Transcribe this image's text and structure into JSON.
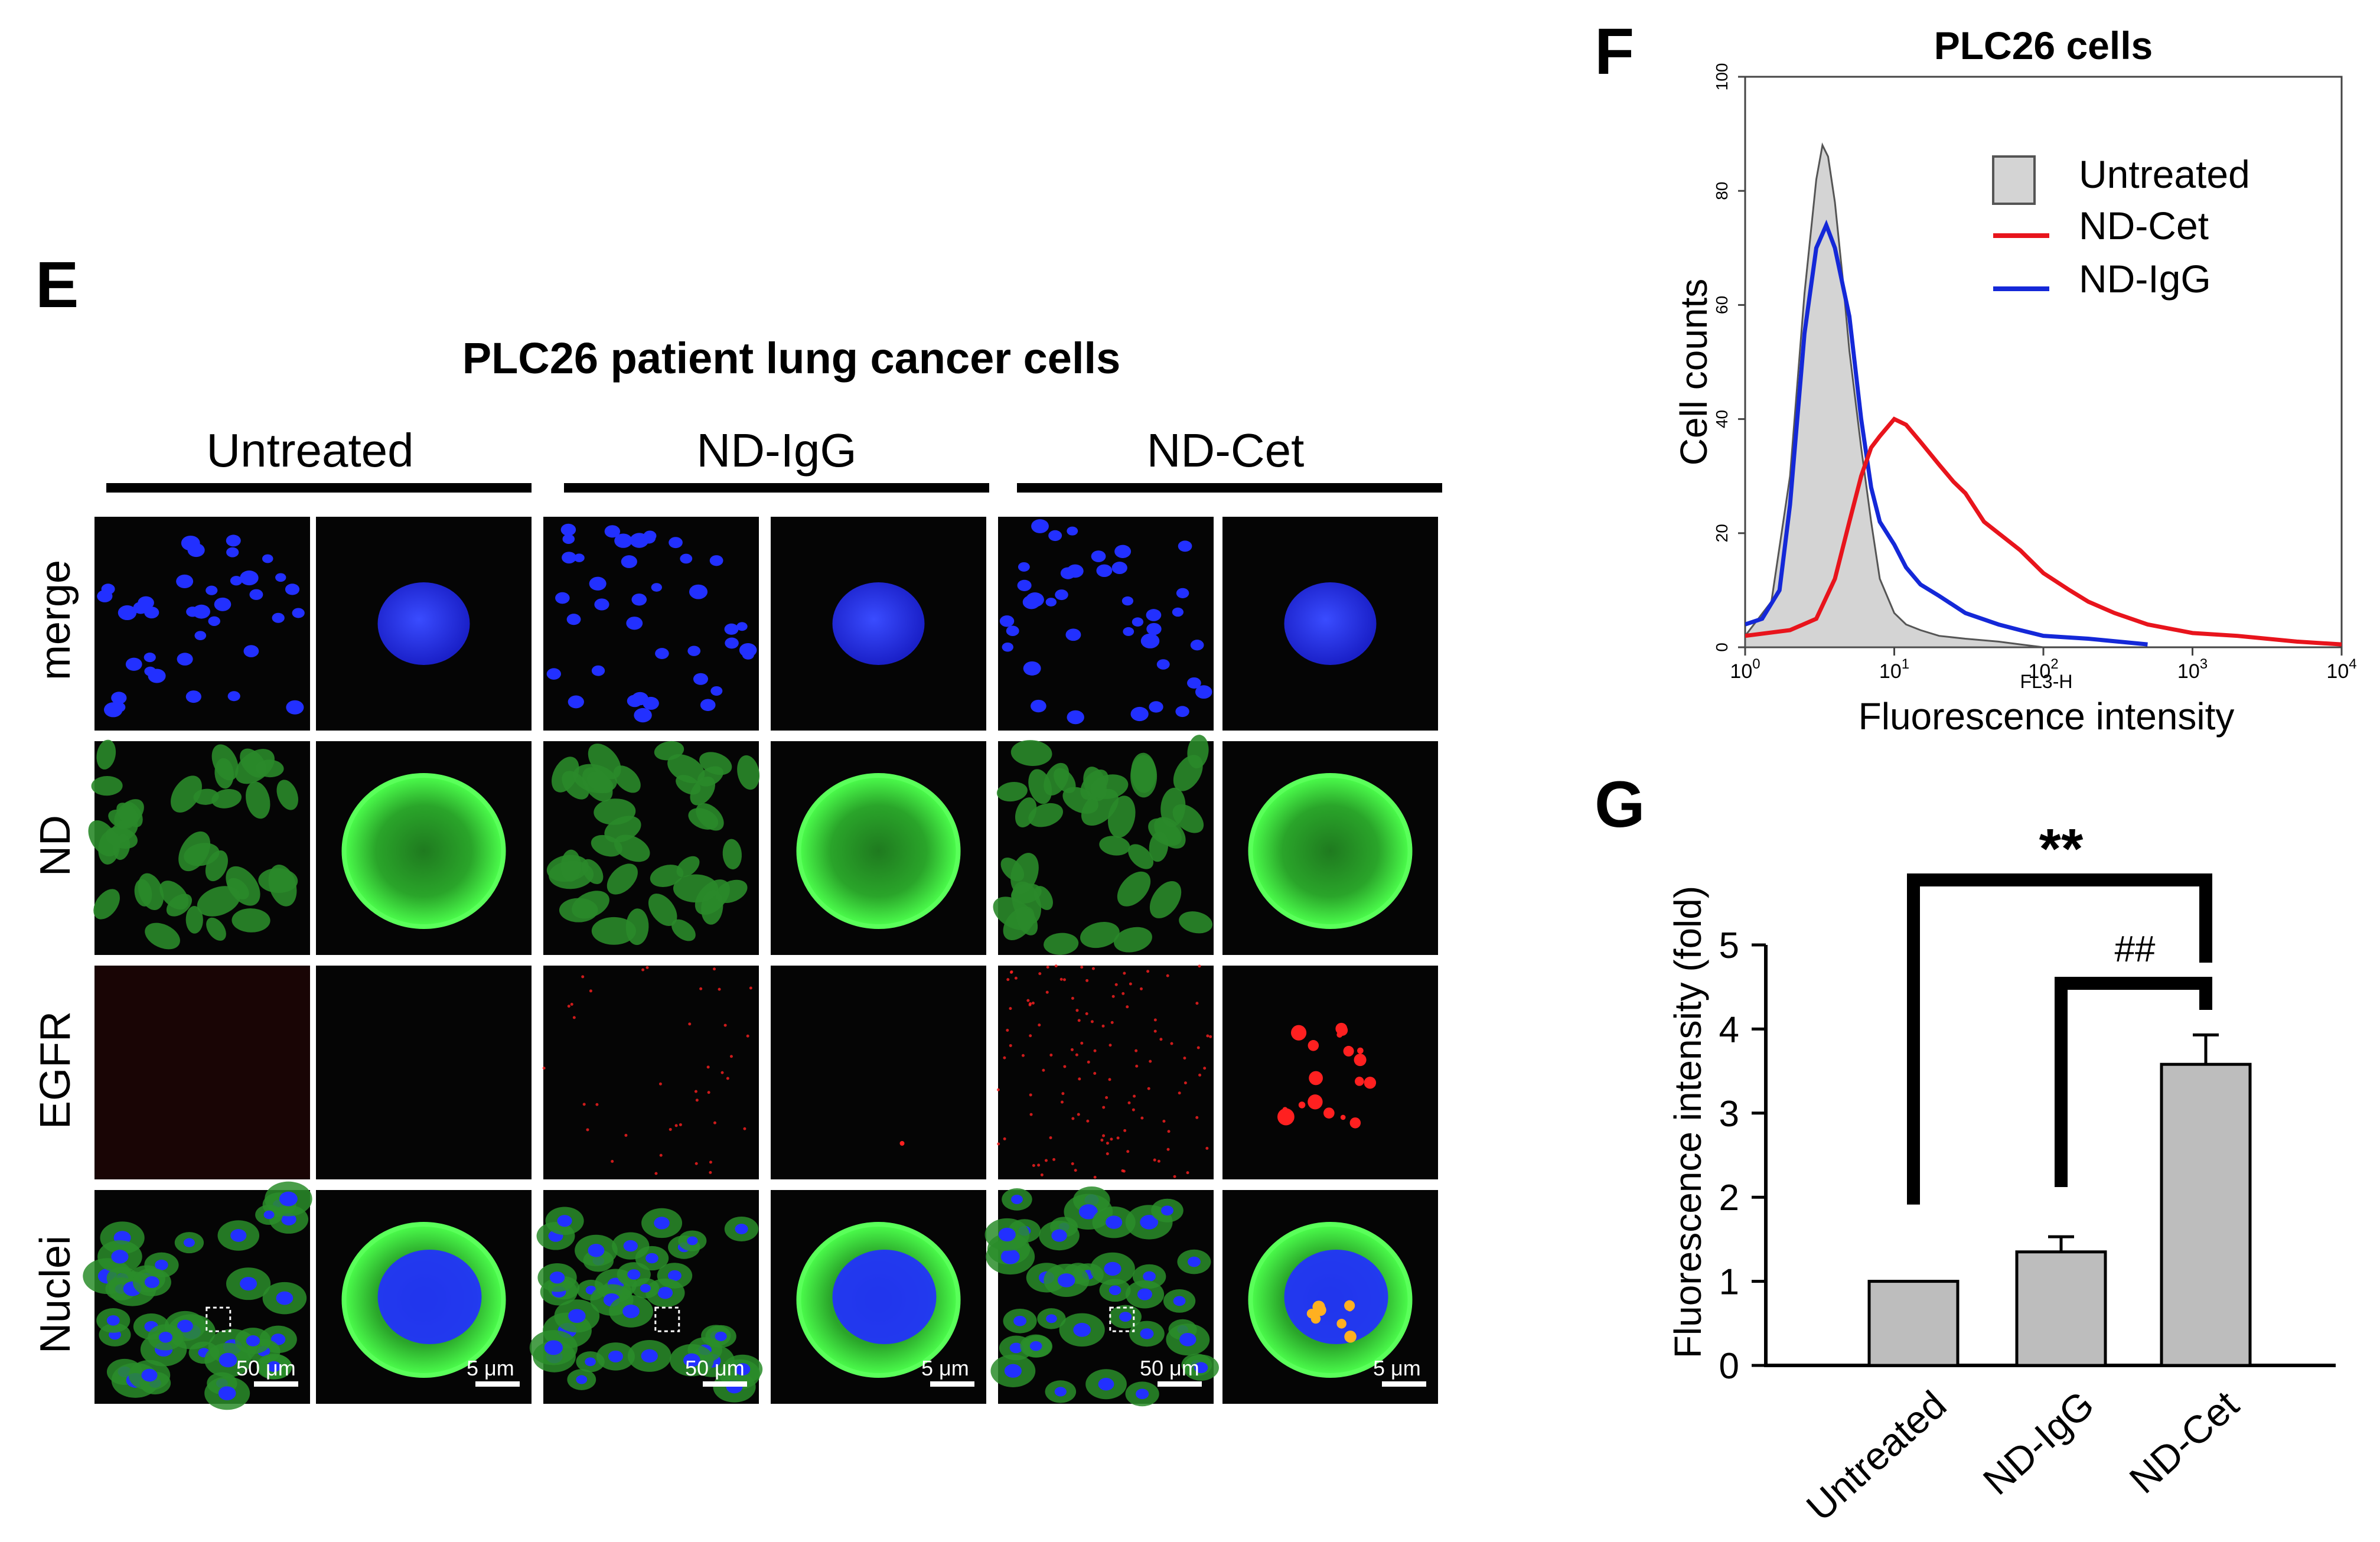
{
  "panel_e": {
    "letter": "E",
    "title": "PLC26 patient lung cancer cells",
    "groups": [
      "Untreated",
      "ND-IgG",
      "ND-Cet"
    ],
    "rows": [
      "merge",
      "ND",
      "EGFR",
      "Nuclei"
    ],
    "scale_wide": "50 μm",
    "scale_zoom": "5 μm"
  },
  "panel_f": {
    "letter": "F",
    "title": "PLC26 cells",
    "xlabel": "Fluorescence intensity",
    "ylabel": "Cell counts",
    "xlabel_small": "FL3-H",
    "legend": [
      "Untreated",
      "ND-Cet",
      "ND-IgG"
    ]
  },
  "panel_g": {
    "letter": "G",
    "sig_main": "**",
    "sig_secondary": "##"
  },
  "colors": {
    "untreated_fill": "#d4d4d4",
    "nd_cet": "#e8141c",
    "nd_igg": "#1428d8",
    "bar_fill": "#bdbdbd",
    "nuclei_blue": "#2230ff",
    "nd_green": "#2ec22e",
    "egfr_red": "#ff2020"
  },
  "chart_data": [
    {
      "type": "area",
      "title": "PLC26 cells",
      "xlabel": "Fluorescence intensity",
      "ylabel": "Cell counts",
      "x_scale": "log",
      "xlim": [
        1,
        10000
      ],
      "ylim": [
        0,
        100
      ],
      "x_ticks": [
        "10^0",
        "10^1",
        "10^2",
        "10^3",
        "10^4"
      ],
      "y_ticks": [
        0,
        20,
        40,
        60,
        80,
        100
      ],
      "legend_position": "top-right",
      "series": [
        {
          "name": "Untreated",
          "style": "filled-gray",
          "x": [
            1,
            1.5,
            2,
            2.5,
            3,
            3.3,
            3.6,
            4,
            4.5,
            5,
            6,
            7,
            8,
            10,
            12,
            15,
            20,
            30,
            50,
            70,
            100
          ],
          "y": [
            2,
            8,
            30,
            62,
            82,
            88,
            86,
            78,
            65,
            52,
            35,
            22,
            12,
            6,
            4,
            3,
            2,
            1.5,
            1,
            0.5,
            0
          ]
        },
        {
          "name": "ND-Cet",
          "style": "line",
          "x": [
            1,
            2,
            3,
            4,
            5,
            6,
            7,
            8,
            10,
            12,
            15,
            20,
            25,
            30,
            40,
            50,
            70,
            100,
            150,
            200,
            300,
            500,
            1000,
            2000,
            5000,
            10000
          ],
          "y": [
            2,
            3,
            5,
            12,
            22,
            30,
            35,
            37,
            40,
            39,
            36,
            32,
            29,
            27,
            22,
            20,
            17,
            13,
            10,
            8,
            6,
            4,
            2.5,
            2,
            1,
            0.5
          ]
        },
        {
          "name": "ND-IgG",
          "style": "line",
          "x": [
            1,
            1.3,
            1.7,
            2,
            2.5,
            3,
            3.5,
            4,
            5,
            6,
            7,
            8,
            10,
            12,
            15,
            20,
            30,
            50,
            70,
            100,
            200,
            500
          ],
          "y": [
            4,
            5,
            10,
            25,
            55,
            70,
            74,
            70,
            58,
            40,
            28,
            22,
            18,
            14,
            11,
            9,
            6,
            4,
            3,
            2,
            1.5,
            0.5
          ]
        }
      ]
    },
    {
      "type": "bar",
      "ylabel": "Fluorescence intensity (fold)",
      "categories": [
        "Untreated",
        "ND-IgG",
        "ND-Cet"
      ],
      "values": [
        1.0,
        1.35,
        3.58
      ],
      "error": [
        0,
        0.18,
        0.35
      ],
      "ylim": [
        0,
        5
      ],
      "y_ticks": [
        0,
        1,
        2,
        3,
        4,
        5
      ],
      "significance": [
        {
          "from": "Untreated",
          "to": "ND-Cet",
          "label": "**"
        },
        {
          "from": "ND-IgG",
          "to": "ND-Cet",
          "label": "##"
        }
      ]
    }
  ]
}
